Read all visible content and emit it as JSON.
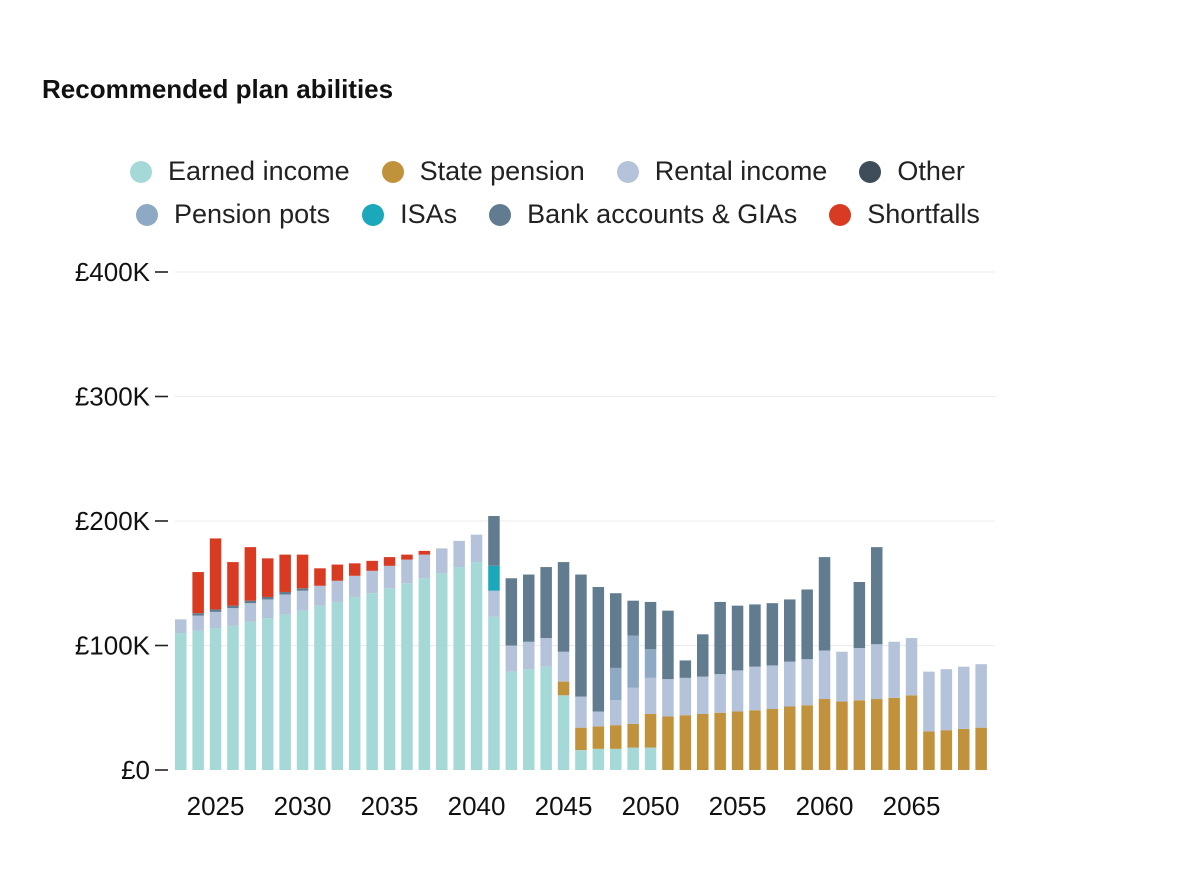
{
  "title": "Recommended plan abilities",
  "legend": [
    {
      "label": "Earned income",
      "key": "earned",
      "color": "#a5d9d8"
    },
    {
      "label": "State pension",
      "key": "state",
      "color": "#c0923b"
    },
    {
      "label": "Rental income",
      "key": "rental",
      "color": "#b4c3da"
    },
    {
      "label": "Other",
      "key": "other",
      "color": "#3f4d5b"
    },
    {
      "label": "Pension pots",
      "key": "pots",
      "color": "#8ea9c3"
    },
    {
      "label": "ISAs",
      "key": "isa",
      "color": "#1aa8ba"
    },
    {
      "label": "Bank accounts & GIAs",
      "key": "bank",
      "color": "#617c8f"
    },
    {
      "label": "Shortfalls",
      "key": "shortfall",
      "color": "#d93a22"
    }
  ],
  "chart_data": {
    "type": "bar",
    "stacked": true,
    "ylim": [
      0,
      400000
    ],
    "yticks": [
      0,
      100000,
      200000,
      300000,
      400000
    ],
    "ytick_labels": [
      "£0",
      "£100K",
      "£200K",
      "£300K",
      "£400K"
    ],
    "xticks": [
      2025,
      2030,
      2035,
      2040,
      2045,
      2050,
      2055,
      2060,
      2065
    ],
    "grid": true,
    "legend_position": "top",
    "x": [
      2023,
      2024,
      2025,
      2026,
      2027,
      2028,
      2029,
      2030,
      2031,
      2032,
      2033,
      2034,
      2035,
      2036,
      2037,
      2038,
      2039,
      2040,
      2041,
      2042,
      2043,
      2044,
      2045,
      2046,
      2047,
      2048,
      2049,
      2050,
      2051,
      2052,
      2053,
      2054,
      2055,
      2056,
      2057,
      2058,
      2059,
      2060,
      2061,
      2062,
      2063,
      2064,
      2065,
      2066,
      2067,
      2068,
      2069
    ],
    "series": [
      {
        "name": "Earned income",
        "key": "earned",
        "values": [
          110000,
          112000,
          114000,
          116000,
          119000,
          122000,
          125000,
          128000,
          132000,
          135000,
          139000,
          142000,
          146000,
          150000,
          154000,
          158000,
          163000,
          167000,
          123000,
          79000,
          81000,
          83000,
          60000,
          16000,
          17000,
          17000,
          18000,
          18000,
          0,
          0,
          0,
          0,
          0,
          0,
          0,
          0,
          0,
          0,
          0,
          0,
          0,
          0,
          0,
          0,
          0,
          0,
          0
        ]
      },
      {
        "name": "State pension",
        "key": "state",
        "values": [
          0,
          0,
          0,
          0,
          0,
          0,
          0,
          0,
          0,
          0,
          0,
          0,
          0,
          0,
          0,
          0,
          0,
          0,
          0,
          0,
          0,
          0,
          11000,
          18000,
          18000,
          19000,
          19000,
          27000,
          43000,
          44000,
          45000,
          46000,
          47000,
          48000,
          49000,
          51000,
          52000,
          57000,
          55000,
          56000,
          57000,
          58000,
          60000,
          31000,
          32000,
          33000,
          34000
        ]
      },
      {
        "name": "Rental income",
        "key": "rental",
        "values": [
          11000,
          12000,
          13000,
          14000,
          15000,
          15000,
          16000,
          16000,
          16000,
          17000,
          17000,
          18000,
          18000,
          19000,
          19000,
          20000,
          21000,
          22000,
          21000,
          21000,
          22000,
          23000,
          24000,
          25000,
          12000,
          20000,
          29000,
          29000,
          30000,
          30000,
          30000,
          31000,
          33000,
          35000,
          35000,
          36000,
          37000,
          39000,
          40000,
          42000,
          44000,
          45000,
          46000,
          48000,
          49000,
          50000,
          51000
        ]
      },
      {
        "name": "Pension pots",
        "key": "pots",
        "values": [
          0,
          0,
          0,
          0,
          0,
          0,
          0,
          0,
          0,
          0,
          0,
          0,
          0,
          0,
          0,
          0,
          0,
          0,
          0,
          0,
          0,
          0,
          0,
          0,
          0,
          26000,
          42000,
          23000,
          0,
          0,
          0,
          0,
          0,
          0,
          0,
          0,
          0,
          0,
          0,
          0,
          0,
          0,
          0,
          0,
          0,
          0,
          0
        ]
      },
      {
        "name": "ISAs",
        "key": "isa",
        "values": [
          0,
          0,
          0,
          0,
          0,
          0,
          0,
          0,
          0,
          0,
          0,
          0,
          0,
          0,
          0,
          0,
          0,
          0,
          20000,
          0,
          0,
          0,
          0,
          0,
          0,
          0,
          0,
          0,
          0,
          0,
          0,
          0,
          0,
          0,
          0,
          0,
          0,
          0,
          0,
          0,
          0,
          0,
          0,
          0,
          0,
          0,
          0
        ]
      },
      {
        "name": "Bank accounts & GIAs",
        "key": "bank",
        "values": [
          0,
          2000,
          2000,
          2000,
          2000,
          2000,
          2000,
          2000,
          0,
          0,
          0,
          0,
          0,
          0,
          0,
          0,
          0,
          0,
          40000,
          54000,
          54000,
          57000,
          72000,
          98000,
          100000,
          60000,
          28000,
          38000,
          55000,
          14000,
          34000,
          58000,
          52000,
          50000,
          50000,
          50000,
          56000,
          75000,
          0,
          53000,
          78000,
          0,
          0,
          0,
          0,
          0,
          0
        ]
      },
      {
        "name": "Other",
        "key": "other",
        "values": [
          0,
          0,
          0,
          0,
          0,
          0,
          0,
          0,
          0,
          0,
          0,
          0,
          0,
          0,
          0,
          0,
          0,
          0,
          0,
          0,
          0,
          0,
          0,
          0,
          0,
          0,
          0,
          0,
          0,
          0,
          0,
          0,
          0,
          0,
          0,
          0,
          0,
          0,
          0,
          0,
          0,
          0,
          0,
          0,
          0,
          0,
          0
        ]
      },
      {
        "name": "Shortfalls",
        "key": "shortfall",
        "values": [
          0,
          33000,
          57000,
          35000,
          43000,
          31000,
          30000,
          27000,
          14000,
          13000,
          10000,
          8000,
          7000,
          4000,
          3000,
          0,
          0,
          0,
          0,
          0,
          0,
          0,
          0,
          0,
          0,
          0,
          0,
          0,
          0,
          0,
          0,
          0,
          0,
          0,
          0,
          0,
          0,
          0,
          0,
          0,
          0,
          0,
          0,
          0,
          0,
          0,
          0
        ]
      }
    ]
  }
}
